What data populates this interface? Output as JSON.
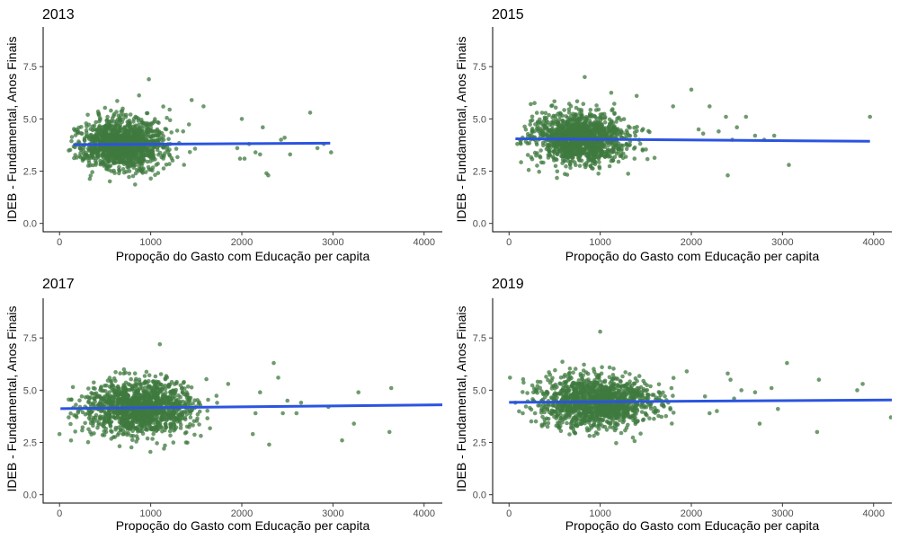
{
  "colors": {
    "point": "#3f7a3f",
    "trend": "#2b54e0",
    "axis": "#000000",
    "tick_text": "#4d4d4d"
  },
  "chart_data": [
    {
      "type": "scatter",
      "title": "2013",
      "xlabel": "Propoção do Gasto com Educação per capita",
      "ylabel": "IDEB - Fundamental, Anos Finais",
      "xlim": [
        -180,
        4200
      ],
      "ylim": [
        -0.4,
        9.4
      ],
      "x_ticks": [
        0,
        1000,
        2000,
        3000,
        4000
      ],
      "y_ticks": [
        "0.0",
        "2.5",
        "5.0",
        "7.5"
      ],
      "point_cloud": {
        "center_x": 700,
        "sd_x": 230,
        "center_y": 3.8,
        "sd_y": 0.62,
        "count": 1300,
        "seed": 13
      },
      "outliers": [
        [
          2980,
          3.4
        ],
        [
          2900,
          3.8
        ],
        [
          2830,
          3.6
        ],
        [
          2750,
          5.3
        ],
        [
          2530,
          3.3
        ],
        [
          2470,
          4.1
        ],
        [
          2430,
          4.0
        ],
        [
          2290,
          2.3
        ],
        [
          2270,
          2.4
        ],
        [
          2230,
          4.6
        ],
        [
          2200,
          3.3
        ],
        [
          2150,
          3.4
        ],
        [
          2080,
          3.8
        ],
        [
          2030,
          3.1
        ],
        [
          1980,
          3.1
        ],
        [
          2000,
          5.0
        ],
        [
          1950,
          3.6
        ],
        [
          980,
          6.9
        ],
        [
          1450,
          5.9
        ],
        [
          1580,
          5.6
        ]
      ],
      "trend": {
        "x": [
          150,
          2970
        ],
        "y": [
          3.77,
          3.84
        ]
      }
    },
    {
      "type": "scatter",
      "title": "2015",
      "xlabel": "Propoção do Gasto com Educação per capita",
      "ylabel": "IDEB - Fundamental, Anos Finais",
      "xlim": [
        -180,
        4200
      ],
      "ylim": [
        -0.4,
        9.4
      ],
      "x_ticks": [
        0,
        1000,
        2000,
        3000,
        4000
      ],
      "y_ticks": [
        "0.0",
        "2.5",
        "5.0",
        "7.5"
      ],
      "point_cloud": {
        "center_x": 780,
        "sd_x": 250,
        "center_y": 4.05,
        "sd_y": 0.6,
        "count": 1300,
        "seed": 15
      },
      "outliers": [
        [
          3960,
          5.1
        ],
        [
          3070,
          2.8
        ],
        [
          2910,
          4.2
        ],
        [
          2800,
          4.0
        ],
        [
          2700,
          4.2
        ],
        [
          2600,
          5.1
        ],
        [
          2500,
          4.6
        ],
        [
          2400,
          2.3
        ],
        [
          2380,
          5.1
        ],
        [
          2300,
          4.4
        ],
        [
          2200,
          5.6
        ],
        [
          2130,
          4.3
        ],
        [
          2080,
          4.5
        ],
        [
          2000,
          6.4
        ],
        [
          2450,
          4.0
        ],
        [
          90,
          3.8
        ],
        [
          120,
          4.0
        ],
        [
          830,
          7.0
        ],
        [
          1400,
          6.1
        ],
        [
          1800,
          5.6
        ]
      ],
      "trend": {
        "x": [
          70,
          3960
        ],
        "y": [
          4.05,
          3.93
        ]
      }
    },
    {
      "type": "scatter",
      "title": "2017",
      "xlabel": "Propoção do Gasto com Educação per capita",
      "ylabel": "IDEB - Fundamental, Anos Finais",
      "xlim": [
        -180,
        4200
      ],
      "ylim": [
        -0.4,
        9.4
      ],
      "x_ticks": [
        0,
        1000,
        2000,
        3000,
        4000
      ],
      "y_ticks": [
        "0.0",
        "2.5",
        "5.0",
        "7.5"
      ],
      "point_cloud": {
        "center_x": 880,
        "sd_x": 280,
        "center_y": 4.15,
        "sd_y": 0.65,
        "count": 1400,
        "seed": 17
      },
      "outliers": [
        [
          3640,
          5.1
        ],
        [
          3620,
          3.0
        ],
        [
          3280,
          4.9
        ],
        [
          3230,
          3.4
        ],
        [
          3100,
          2.6
        ],
        [
          2950,
          4.2
        ],
        [
          2650,
          4.4
        ],
        [
          2600,
          3.9
        ],
        [
          2500,
          4.5
        ],
        [
          2450,
          3.9
        ],
        [
          2400,
          5.6
        ],
        [
          2350,
          6.3
        ],
        [
          2300,
          2.4
        ],
        [
          2200,
          4.9
        ],
        [
          2150,
          3.9
        ],
        [
          2120,
          2.9
        ],
        [
          0,
          2.9
        ],
        [
          100,
          3.7
        ],
        [
          1100,
          7.2
        ],
        [
          1850,
          5.3
        ]
      ],
      "trend": {
        "x": [
          10,
          4200
        ],
        "y": [
          4.12,
          4.3
        ]
      }
    },
    {
      "type": "scatter",
      "title": "2019",
      "xlabel": "Propoção do Gasto com Educação per capita",
      "ylabel": "IDEB - Fundamental, Anos Finais",
      "xlim": [
        -180,
        4200
      ],
      "ylim": [
        -0.4,
        9.4
      ],
      "x_ticks": [
        0,
        1000,
        2000,
        3000,
        4000
      ],
      "y_ticks": [
        "0.0",
        "2.5",
        "5.0",
        "7.5"
      ],
      "point_cloud": {
        "center_x": 950,
        "sd_x": 300,
        "center_y": 4.45,
        "sd_y": 0.6,
        "count": 1400,
        "seed": 19
      },
      "outliers": [
        [
          4190,
          3.7
        ],
        [
          3880,
          5.3
        ],
        [
          3820,
          5.0
        ],
        [
          3400,
          5.5
        ],
        [
          3380,
          3.0
        ],
        [
          3050,
          6.3
        ],
        [
          2950,
          4.1
        ],
        [
          2880,
          5.1
        ],
        [
          2750,
          3.4
        ],
        [
          2700,
          4.9
        ],
        [
          2550,
          5.0
        ],
        [
          2470,
          4.6
        ],
        [
          2400,
          5.8
        ],
        [
          2280,
          4.0
        ],
        [
          2200,
          3.9
        ],
        [
          2150,
          4.7
        ],
        [
          10,
          5.6
        ],
        [
          70,
          4.4
        ],
        [
          150,
          3.9
        ],
        [
          1000,
          7.8
        ],
        [
          2430,
          5.5
        ],
        [
          1950,
          5.9
        ]
      ],
      "trend": {
        "x": [
          0,
          4200
        ],
        "y": [
          4.42,
          4.53
        ]
      }
    }
  ]
}
